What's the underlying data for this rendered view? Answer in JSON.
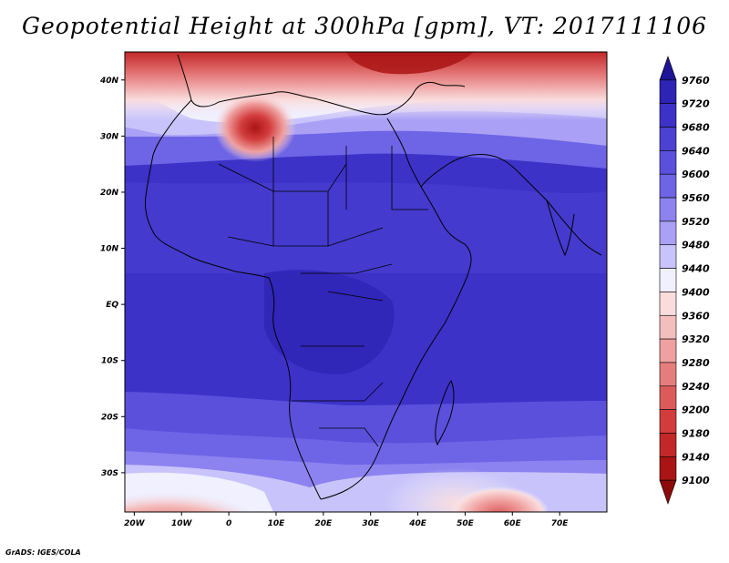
{
  "title": "Geopotential Height at 300hPa [gpm], VT: 2017111106",
  "footer": "GrADS: IGES/COLA",
  "map": {
    "projection": "latlon",
    "lon_range": [
      -22,
      80
    ],
    "lat_range": [
      -37,
      45
    ],
    "lat_ticks": [
      {
        "value": 40,
        "label": "40N"
      },
      {
        "value": 30,
        "label": "30N"
      },
      {
        "value": 20,
        "label": "20N"
      },
      {
        "value": 10,
        "label": "10N"
      },
      {
        "value": 0,
        "label": "EQ"
      },
      {
        "value": -10,
        "label": "10S"
      },
      {
        "value": -20,
        "label": "20S"
      },
      {
        "value": -30,
        "label": "30S"
      }
    ],
    "lon_ticks": [
      {
        "value": -20,
        "label": "20W"
      },
      {
        "value": -10,
        "label": "10W"
      },
      {
        "value": 0,
        "label": "0"
      },
      {
        "value": 10,
        "label": "10E"
      },
      {
        "value": 20,
        "label": "20E"
      },
      {
        "value": 30,
        "label": "30E"
      },
      {
        "value": 40,
        "label": "40E"
      },
      {
        "value": 50,
        "label": "50E"
      },
      {
        "value": 60,
        "label": "60E"
      },
      {
        "value": 70,
        "label": "70E"
      }
    ],
    "field": "Geopotential height at 300 hPa (gpm)"
  },
  "colorbar": {
    "levels": [
      9760,
      9720,
      9680,
      9640,
      9600,
      9560,
      9520,
      9480,
      9440,
      9400,
      9360,
      9320,
      9280,
      9240,
      9200,
      9180,
      9140,
      9100
    ],
    "colors": [
      "#1e1496",
      "#2d23b4",
      "#3c32c8",
      "#4b41d2",
      "#5a50dc",
      "#6e64e6",
      "#8c82f0",
      "#aaa0f5",
      "#c8c3fa",
      "#f0f0ff",
      "#fadcdc",
      "#f5bebe",
      "#f0a0a0",
      "#e67d7d",
      "#dc5a5a",
      "#d23c3c",
      "#c32828",
      "#aa1414",
      "#8c0a0a"
    ]
  }
}
